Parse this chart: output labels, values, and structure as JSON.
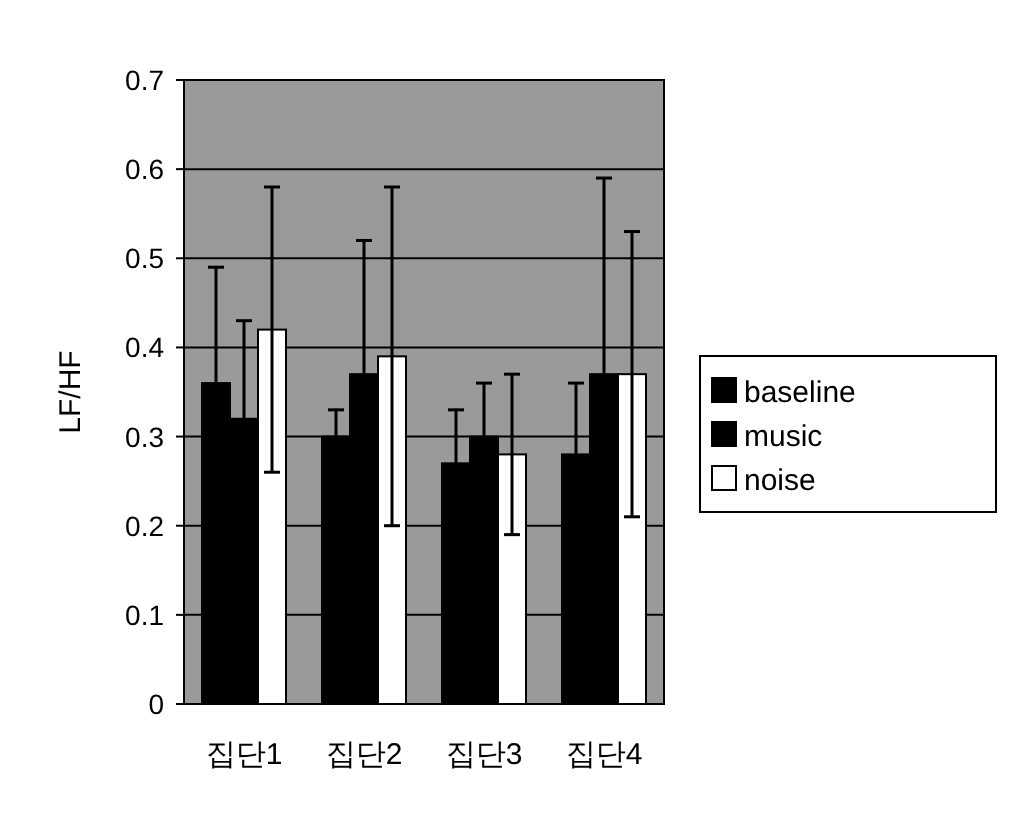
{
  "chart_data": {
    "type": "bar",
    "ylabel": "LF/HF",
    "categories": [
      "집단1",
      "집단2",
      "집단3",
      "집단4"
    ],
    "ylim": [
      0,
      0.7
    ],
    "yticks": [
      0,
      0.1,
      0.2,
      0.3,
      0.4,
      0.5,
      0.6,
      0.7
    ],
    "grid": "y",
    "legend": "right",
    "series": [
      {
        "name": "baseline",
        "color": "#000000",
        "values": [
          0.36,
          0.3,
          0.27,
          0.28
        ],
        "errors": [
          0.13,
          0.03,
          0.06,
          0.08
        ]
      },
      {
        "name": "music",
        "color": "#000000",
        "values": [
          0.32,
          0.37,
          0.3,
          0.37
        ],
        "errors": [
          0.11,
          0.15,
          0.06,
          0.22
        ]
      },
      {
        "name": "noise",
        "color": "#ffffff",
        "values": [
          0.42,
          0.39,
          0.28,
          0.37
        ],
        "errors": [
          0.16,
          0.19,
          0.09,
          0.16
        ]
      }
    ]
  }
}
